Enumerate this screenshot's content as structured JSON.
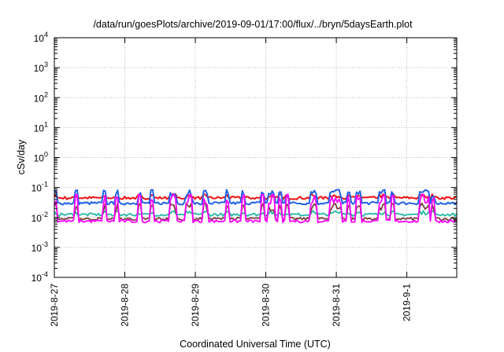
{
  "chart_data": {
    "type": "line",
    "title": "/data/run/goesPlots/archive/2019-09-01/17:00/flux/../bryn/5daysEarth.plot",
    "xlabel": "Coordinated Universal Time (UTC)",
    "ylabel": "cSv/day",
    "yscale": "log",
    "ylim": [
      0.0001,
      10000
    ],
    "xlim": [
      "2019-08-27",
      "2019-09-01T17:00"
    ],
    "grid": true,
    "x_tick_labels": [
      "2019-8-27",
      "2019-8-28",
      "2019-8-29",
      "2019-8-30",
      "2019-8-31",
      "2019-9-1"
    ],
    "y_tick_labels": [
      {
        "base": "10",
        "exp": "-4"
      },
      {
        "base": "10",
        "exp": "-3"
      },
      {
        "base": "10",
        "exp": "-2"
      },
      {
        "base": "10",
        "exp": "-1"
      },
      {
        "base": "10",
        "exp": "0"
      },
      {
        "base": "10",
        "exp": "1"
      },
      {
        "base": "10",
        "exp": "2"
      },
      {
        "base": "10",
        "exp": "3"
      },
      {
        "base": "10",
        "exp": "4"
      }
    ],
    "series": [
      {
        "color": "#ee1111",
        "baseline": 0.045,
        "spike": 0.075,
        "spiky": false
      },
      {
        "color": "#1f62e6",
        "baseline": 0.03,
        "spike": 0.085,
        "spiky": true
      },
      {
        "color": "#20b8a8",
        "baseline": 0.0125,
        "spike": 0.022,
        "spiky": false
      },
      {
        "color": "#7a3f3f",
        "baseline": 0.009,
        "spike": 0.03,
        "spiky": true
      },
      {
        "color": "#ff00ff",
        "baseline": 0.0075,
        "spike": 0.06,
        "spiky": true
      }
    ]
  }
}
